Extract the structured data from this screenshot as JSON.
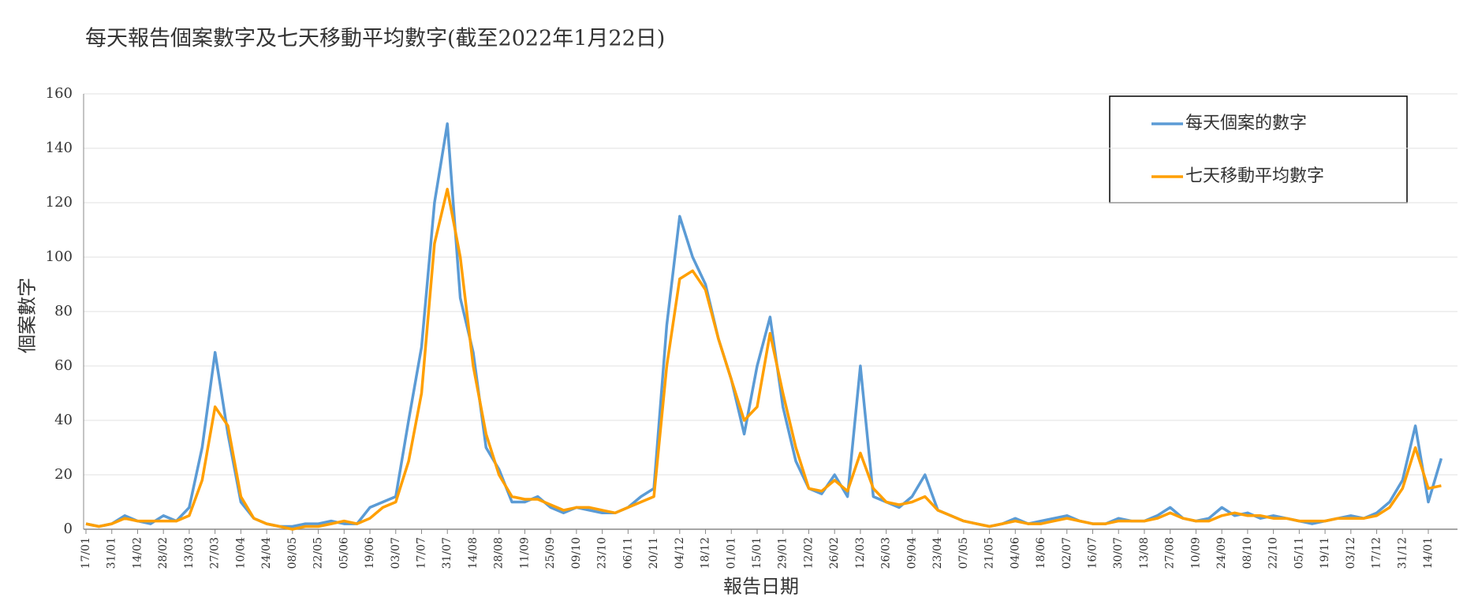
{
  "chart_data": {
    "type": "line",
    "title": "每天報告個案數字及七天移動平均數字(截至2022年1月22日)",
    "xlabel": "報告日期",
    "ylabel": "個案數字",
    "categories": [
      "17/01",
      null,
      "31/01",
      null,
      "14/02",
      null,
      "28/02",
      null,
      "13/03",
      null,
      "27/03",
      null,
      "10/04",
      null,
      "24/04",
      null,
      "08/05",
      null,
      "22/05",
      null,
      "05/06",
      null,
      "19/06",
      null,
      "03/07",
      null,
      "17/07",
      null,
      "31/07",
      null,
      "14/08",
      null,
      "28/08",
      null,
      "11/09",
      null,
      "25/09",
      null,
      "09/10",
      null,
      "23/10",
      null,
      "06/11",
      null,
      "20/11",
      null,
      "04/12",
      null,
      "18/12",
      null,
      "01/01",
      null,
      "15/01",
      null,
      "29/01",
      null,
      "12/02",
      null,
      "26/02",
      null,
      "12/03",
      null,
      "26/03",
      null,
      "09/04",
      null,
      "23/04",
      null,
      "07/05",
      null,
      "21/05",
      null,
      "04/06",
      null,
      "18/06",
      null,
      "02/07",
      null,
      "16/07",
      null,
      "30/07",
      null,
      "13/08",
      null,
      "27/08",
      null,
      "10/09",
      null,
      "24/09",
      null,
      "08/10",
      null,
      "22/10",
      null,
      "05/11",
      null,
      "19/11",
      null,
      "03/12",
      null,
      "17/12",
      null,
      "31/12",
      null,
      "14/01",
      null
    ],
    "series": [
      {
        "name": "每天個案的數字",
        "color": "#5b9bd5",
        "values": [
          2,
          1,
          2,
          5,
          3,
          2,
          5,
          3,
          8,
          30,
          65,
          35,
          10,
          4,
          2,
          1,
          1,
          2,
          2,
          3,
          2,
          2,
          8,
          10,
          12,
          40,
          67,
          120,
          149,
          85,
          65,
          30,
          22,
          10,
          10,
          12,
          8,
          6,
          8,
          7,
          6,
          6,
          8,
          12,
          15,
          75,
          115,
          100,
          90,
          70,
          55,
          35,
          60,
          78,
          45,
          25,
          15,
          13,
          20,
          12,
          60,
          12,
          10,
          8,
          12,
          20,
          7,
          5,
          3,
          2,
          1,
          2,
          4,
          2,
          3,
          4,
          5,
          3,
          2,
          2,
          4,
          3,
          3,
          5,
          8,
          4,
          3,
          4,
          8,
          5,
          6,
          4,
          5,
          4,
          3,
          2,
          3,
          4,
          5,
          4,
          6,
          10,
          18,
          38,
          10,
          26
        ]
      },
      {
        "name": "七天移動平均數字",
        "color": "#ff9f00",
        "values": [
          2,
          1,
          2,
          4,
          3,
          3,
          3,
          3,
          5,
          18,
          45,
          38,
          12,
          4,
          2,
          1,
          0,
          1,
          1,
          2,
          3,
          2,
          4,
          8,
          10,
          25,
          50,
          105,
          125,
          100,
          60,
          35,
          20,
          12,
          11,
          11,
          9,
          7,
          8,
          8,
          7,
          6,
          8,
          10,
          12,
          60,
          92,
          95,
          88,
          70,
          55,
          40,
          45,
          72,
          50,
          30,
          15,
          14,
          18,
          14,
          28,
          15,
          10,
          9,
          10,
          12,
          7,
          5,
          3,
          2,
          1,
          2,
          3,
          2,
          2,
          3,
          4,
          3,
          2,
          2,
          3,
          3,
          3,
          4,
          6,
          4,
          3,
          3,
          5,
          6,
          5,
          5,
          4,
          4,
          3,
          3,
          3,
          4,
          4,
          4,
          5,
          8,
          15,
          30,
          15,
          16
        ]
      }
    ],
    "ylim": [
      0,
      160
    ],
    "yticks": [
      0,
      20,
      40,
      60,
      80,
      100,
      120,
      140,
      160
    ],
    "grid": true,
    "legend": "upper right"
  }
}
